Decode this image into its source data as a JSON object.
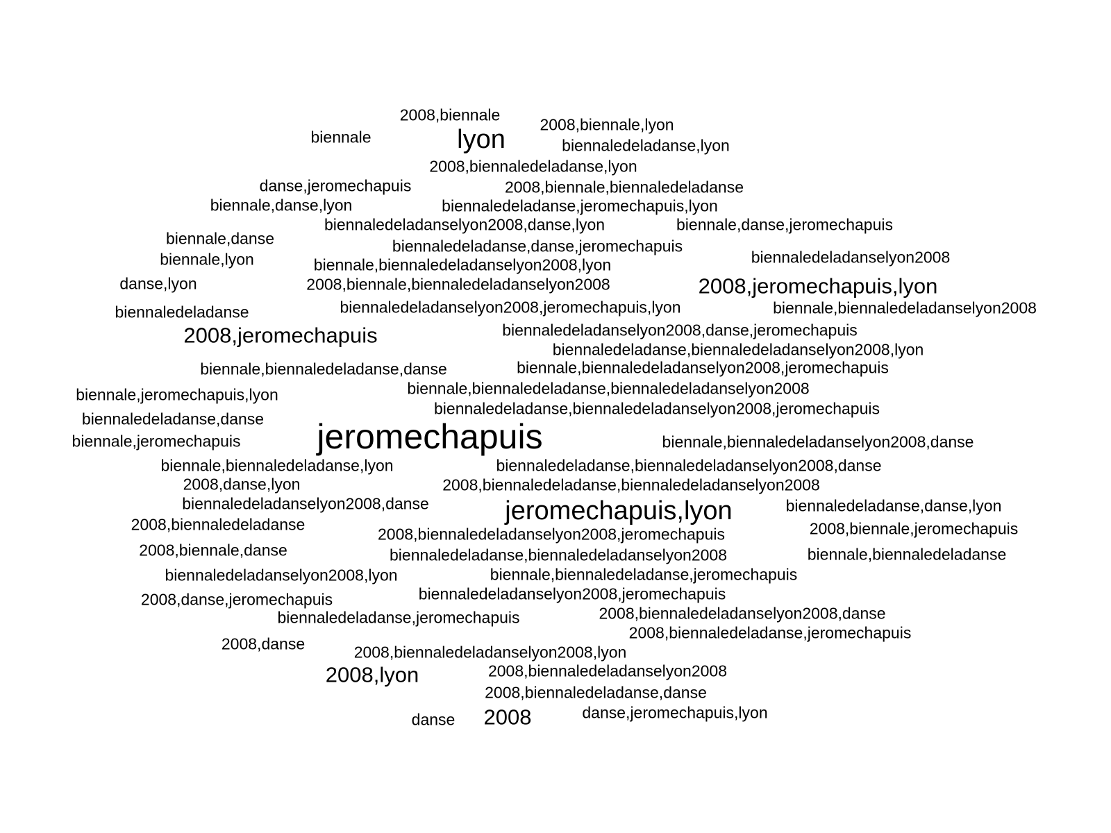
{
  "words": [
    {
      "text": "2008,biennale",
      "count": 1
    },
    {
      "text": "biennale",
      "count": 1
    },
    {
      "text": "lyon",
      "count": 3
    },
    {
      "text": "2008,biennale,lyon",
      "count": 1
    },
    {
      "text": "biennaledeladanse,lyon",
      "count": 1
    },
    {
      "text": "2008,biennaledeladanse,lyon",
      "count": 1
    },
    {
      "text": "danse,jeromechapuis",
      "count": 1
    },
    {
      "text": "2008,biennale,biennaledeladanse",
      "count": 1
    },
    {
      "text": "biennale,danse,lyon",
      "count": 1
    },
    {
      "text": "biennaledeladanse,jeromechapuis,lyon",
      "count": 1
    },
    {
      "text": "biennaledeladanselyon2008,danse,lyon",
      "count": 1
    },
    {
      "text": "biennale,danse,jeromechapuis",
      "count": 1
    },
    {
      "text": "biennale,danse",
      "count": 1
    },
    {
      "text": "biennaledeladanse,danse,jeromechapuis",
      "count": 1
    },
    {
      "text": "biennale,lyon",
      "count": 1
    },
    {
      "text": "biennaledeladanselyon2008",
      "count": 1
    },
    {
      "text": "biennale,biennaledeladanselyon2008,lyon",
      "count": 1
    },
    {
      "text": "danse,lyon",
      "count": 1
    },
    {
      "text": "2008,biennale,biennaledeladanselyon2008",
      "count": 1
    },
    {
      "text": "2008,jeromechapuis,lyon",
      "count": 2
    },
    {
      "text": "biennaledeladanse",
      "count": 1
    },
    {
      "text": "biennaledeladanselyon2008,jeromechapuis,lyon",
      "count": 1
    },
    {
      "text": "biennale,biennaledeladanselyon2008",
      "count": 1
    },
    {
      "text": "2008,jeromechapuis",
      "count": 2
    },
    {
      "text": "biennaledeladanselyon2008,danse,jeromechapuis",
      "count": 1
    },
    {
      "text": "biennaledeladanse,biennaledeladanselyon2008,lyon",
      "count": 1
    },
    {
      "text": "biennale,biennaledeladanse,danse",
      "count": 1
    },
    {
      "text": "biennale,biennaledeladanselyon2008,jeromechapuis",
      "count": 1
    },
    {
      "text": "biennale,jeromechapuis,lyon",
      "count": 1
    },
    {
      "text": "biennale,biennaledeladanse,biennaledeladanselyon2008",
      "count": 1
    },
    {
      "text": "biennaledeladanse,danse",
      "count": 1
    },
    {
      "text": "biennaledeladanse,biennaledeladanselyon2008,jeromechapuis",
      "count": 1
    },
    {
      "text": "jeromechapuis",
      "count": 4
    },
    {
      "text": "biennale,jeromechapuis",
      "count": 1
    },
    {
      "text": "biennale,biennaledeladanselyon2008,danse",
      "count": 1
    },
    {
      "text": "biennale,biennaledeladanse,lyon",
      "count": 1
    },
    {
      "text": "biennaledeladanse,biennaledeladanselyon2008,danse",
      "count": 1
    },
    {
      "text": "2008,danse,lyon",
      "count": 1
    },
    {
      "text": "2008,biennaledeladanse,biennaledeladanselyon2008",
      "count": 1
    },
    {
      "text": "biennaledeladanselyon2008,danse",
      "count": 1
    },
    {
      "text": "jeromechapuis,lyon",
      "count": 3
    },
    {
      "text": "biennaledeladanse,danse,lyon",
      "count": 1
    },
    {
      "text": "2008,biennaledeladanse",
      "count": 1
    },
    {
      "text": "2008,biennaledeladanselyon2008,jeromechapuis",
      "count": 1
    },
    {
      "text": "2008,biennale,jeromechapuis",
      "count": 1
    },
    {
      "text": "2008,biennale,danse",
      "count": 1
    },
    {
      "text": "biennaledeladanse,biennaledeladanselyon2008",
      "count": 1
    },
    {
      "text": "biennale,biennaledeladanse",
      "count": 1
    },
    {
      "text": "biennaledeladanselyon2008,lyon",
      "count": 1
    },
    {
      "text": "biennale,biennaledeladanse,jeromechapuis",
      "count": 1
    },
    {
      "text": "biennaledeladanselyon2008,jeromechapuis",
      "count": 1
    },
    {
      "text": "2008,danse,jeromechapuis",
      "count": 1
    },
    {
      "text": "2008,biennaledeladanselyon2008,danse",
      "count": 1
    },
    {
      "text": "biennaledeladanse,jeromechapuis",
      "count": 1
    },
    {
      "text": "2008,biennaledeladanse,jeromechapuis",
      "count": 1
    },
    {
      "text": "2008,danse",
      "count": 1
    },
    {
      "text": "2008,biennaledeladanselyon2008,lyon",
      "count": 1
    },
    {
      "text": "2008,lyon",
      "count": 2
    },
    {
      "text": "2008,biennaledeladanselyon2008",
      "count": 1
    },
    {
      "text": "2008,biennaledeladanse,danse",
      "count": 1
    },
    {
      "text": "danse",
      "count": 1
    },
    {
      "text": "2008",
      "count": 2
    },
    {
      "text": "danse,jeromechapuis,lyon",
      "count": 1
    }
  ]
}
